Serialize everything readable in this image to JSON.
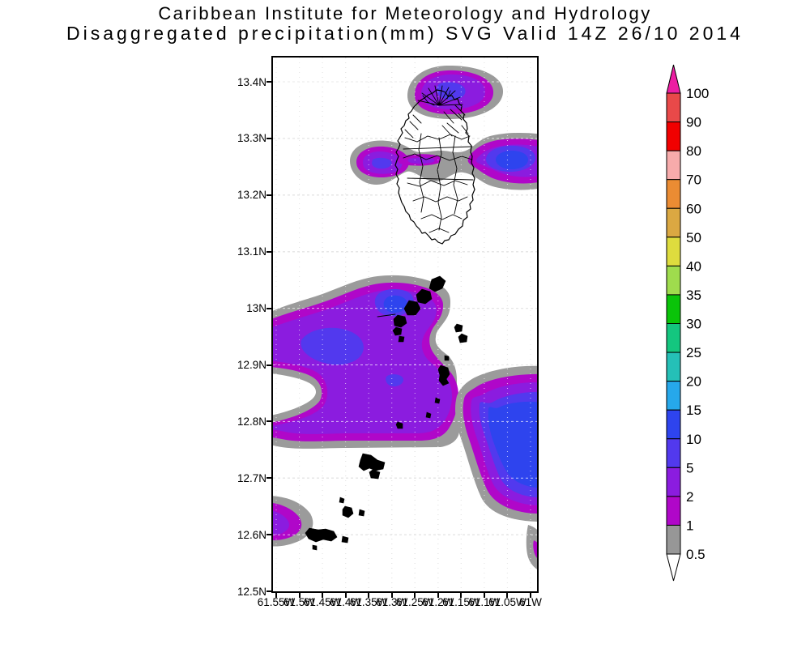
{
  "title": {
    "line1": "Caribbean Institute for Meteorology and Hydrology",
    "line2": "Disaggregated precipitation(mm) SVG Valid 14Z 26/10 2014"
  },
  "axes": {
    "lat_labels": [
      "13.4N",
      "13.3N",
      "13.2N",
      "13.1N",
      "13N",
      "12.9N",
      "12.8N",
      "12.7N",
      "12.6N",
      "12.5N"
    ],
    "lon_labels": [
      "61.55W",
      "61.5W",
      "61.45W",
      "61.4W",
      "61.35W",
      "61.3W",
      "61.25W",
      "61.2W",
      "61.15W",
      "61.1W",
      "61.05W",
      "61W"
    ]
  },
  "colorbar": {
    "labels": [
      "100",
      "90",
      "80",
      "70",
      "60",
      "50",
      "40",
      "35",
      "30",
      "25",
      "20",
      "15",
      "10",
      "5",
      "2",
      "1",
      "0.5"
    ],
    "segment_colors": [
      "#E94949",
      "#F10000",
      "#F7ABAB",
      "#EB8C33",
      "#DBA842",
      "#DEDC3E",
      "#9FDC4D",
      "#0AC409",
      "#14C67F",
      "#25C0B7",
      "#26A8EB",
      "#2E44EE",
      "#5239EE",
      "#8B1CDF",
      "#B007C9",
      "#979797"
    ],
    "arrow_top_color": "#EC1EA2",
    "arrow_bottom_color": "#FFFFFF"
  },
  "map_palette": {
    "gray": "#9B9B9B",
    "magenta": "#B007C9",
    "purple": "#8B1CDF",
    "violet": "#5239EE",
    "blue": "#2E44EE"
  },
  "chart_data": {
    "type": "contour-map",
    "variable": "Disaggregated precipitation (mm)",
    "region": "SVG",
    "valid_time": "14Z 26/10 2014",
    "lat_range": [
      "12.5N",
      "13.45N"
    ],
    "lon_range": [
      "61.55W",
      "61W"
    ],
    "scale_levels": [
      0.5,
      1,
      2,
      5,
      10,
      15,
      20,
      25,
      30,
      35,
      40,
      50,
      60,
      70,
      80,
      90,
      100
    ],
    "shading_legend": "values between consecutive levels shaded; 0.5-1 gray, 1-2 magenta, 2-5 purple, 5-10 violet-blue, 10-15 blue"
  }
}
